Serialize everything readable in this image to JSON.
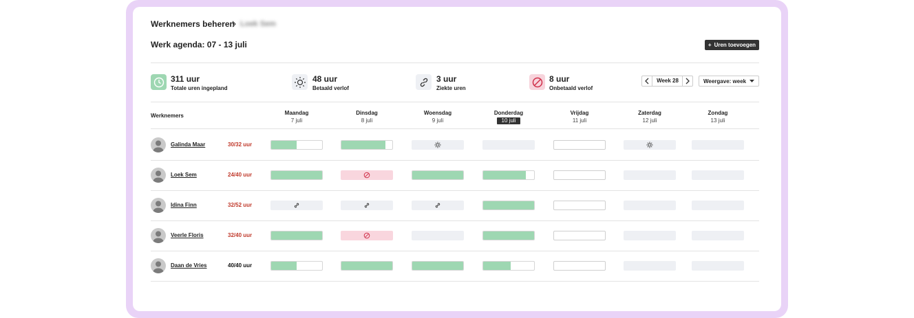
{
  "breadcrumb": {
    "parent": "Werknemers beheren",
    "current": "Loek Sem"
  },
  "title": "Werk agenda: 07 - 13 juli",
  "add_button": "Uren toevoegen",
  "stats": [
    {
      "value": "311 uur",
      "label": "Totale uren ingepland"
    },
    {
      "value": "48 uur",
      "label": "Betaald verlof"
    },
    {
      "value": "3 uur",
      "label": "Ziekte uren"
    },
    {
      "value": "8 uur",
      "label": "Onbetaald verlof"
    }
  ],
  "week_label": "Week 28",
  "view_select": "Weergave: week",
  "table": {
    "employee_header": "Werknemers",
    "today_index": 3,
    "days": [
      {
        "name": "Maandag",
        "date": "7 juli"
      },
      {
        "name": "Dinsdag",
        "date": "8 juli"
      },
      {
        "name": "Woensdag",
        "date": "9 juli"
      },
      {
        "name": "Donderdag",
        "date": "10 juli"
      },
      {
        "name": "Vrijdag",
        "date": "11 juli"
      },
      {
        "name": "Zaterdag",
        "date": "12 juli"
      },
      {
        "name": "Zondag",
        "date": "13 juli"
      }
    ],
    "rows": [
      {
        "name": "Galinda Maar",
        "hours": "30/32 uur",
        "hours_color": "#c0392b",
        "cells": [
          {
            "kind": "work",
            "fill": 0.5
          },
          {
            "kind": "work",
            "fill": 0.87
          },
          {
            "kind": "leave"
          },
          {
            "kind": "off"
          },
          {
            "kind": "open"
          },
          {
            "kind": "leave"
          },
          {
            "kind": "off"
          }
        ]
      },
      {
        "name": "Loek Sem",
        "hours": "24/40 uur",
        "hours_color": "#c0392b",
        "cells": [
          {
            "kind": "work",
            "fill": 1
          },
          {
            "kind": "unpaid"
          },
          {
            "kind": "work",
            "fill": 1
          },
          {
            "kind": "work",
            "fill": 0.84
          },
          {
            "kind": "open"
          },
          {
            "kind": "off"
          },
          {
            "kind": "off"
          }
        ]
      },
      {
        "name": "Idina Finn",
        "hours": "32/52 uur",
        "hours_color": "#c0392b",
        "cells": [
          {
            "kind": "sick"
          },
          {
            "kind": "sick"
          },
          {
            "kind": "sick"
          },
          {
            "kind": "work",
            "fill": 1
          },
          {
            "kind": "open"
          },
          {
            "kind": "off"
          },
          {
            "kind": "off"
          }
        ]
      },
      {
        "name": "Veerle Floris",
        "hours": "32/40 uur",
        "hours_color": "#c0392b",
        "cells": [
          {
            "kind": "work",
            "fill": 1
          },
          {
            "kind": "unpaid"
          },
          {
            "kind": "off"
          },
          {
            "kind": "work",
            "fill": 1
          },
          {
            "kind": "open"
          },
          {
            "kind": "off"
          },
          {
            "kind": "off"
          }
        ]
      },
      {
        "name": "Daan de Vries",
        "hours": "40/40 uur",
        "hours_color": "#111111",
        "cells": [
          {
            "kind": "work",
            "fill": 0.5
          },
          {
            "kind": "work",
            "fill": 1
          },
          {
            "kind": "work",
            "fill": 1
          },
          {
            "kind": "work",
            "fill": 0.54
          },
          {
            "kind": "open"
          },
          {
            "kind": "off"
          },
          {
            "kind": "off"
          }
        ]
      }
    ]
  }
}
